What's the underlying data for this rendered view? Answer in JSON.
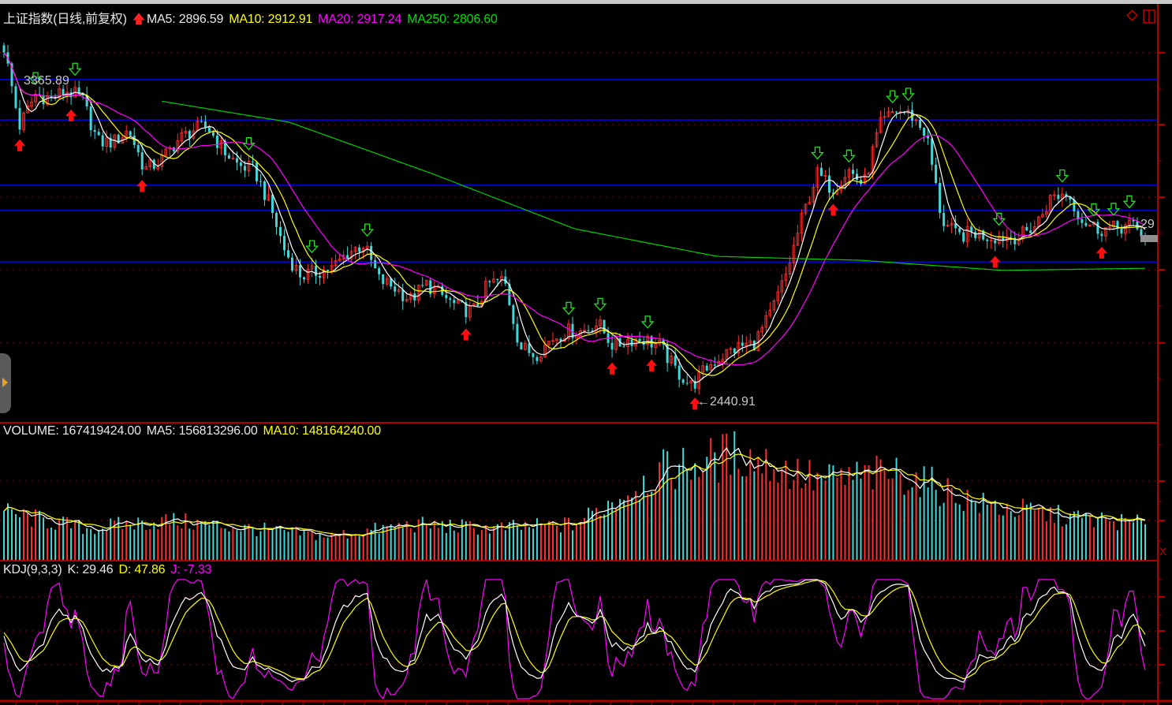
{
  "header": {
    "title": "上证指数(日线,前复权)",
    "ma5": "MA5: 2896.59",
    "ma10": "MA10: 2912.91",
    "ma20": "MA20: 2917.24",
    "ma250": "MA250: 2806.60"
  },
  "volume_header": {
    "volume": "VOLUME: 167419424.00",
    "ma5": "MA5: 156813296.00",
    "ma10": "MA10: 148164240.00"
  },
  "kdj_header": {
    "name": "KDJ(9,3,3)",
    "k": "K: 29.46",
    "d": "D: 47.86",
    "j": "J: -7.33"
  },
  "annotations": {
    "high_label": "3365.89",
    "low_label": "←2440.91",
    "right_price_tag": "29"
  },
  "colors": {
    "up": "#ff3030",
    "down": "#40d8d8",
    "ma5": "#ffffff",
    "ma10": "#ffff00",
    "ma20": "#ff00ff",
    "ma250": "#00d000",
    "level_line": "#0000ff",
    "grid": "#8b0000"
  },
  "chart_data": {
    "type": "candlestick",
    "title": "上证指数(日线,前复权)",
    "price_high": 3365.89,
    "price_low": 2440.91,
    "close_keypoints": [
      3456,
      3230,
      3321,
      3309,
      3332,
      3309,
      3185,
      3185,
      3219,
      3106,
      3129,
      3185,
      3219,
      3230,
      3163,
      3118,
      3106,
      3005,
      2869,
      2802,
      2813,
      2824,
      2869,
      2892,
      2791,
      2768,
      2734,
      2779,
      2746,
      2712,
      2700,
      2779,
      2791,
      2599,
      2576,
      2621,
      2644,
      2644,
      2667,
      2599,
      2621,
      2621,
      2599,
      2531,
      2486,
      2542,
      2576,
      2599,
      2610,
      2689,
      2802,
      2960,
      3095,
      3050,
      3106,
      3061,
      3230,
      3276,
      3264,
      3208,
      2960,
      2915,
      2926,
      2915,
      2915,
      2915,
      2948,
      3027,
      3039,
      2960,
      2937,
      2937,
      2948,
      2915
    ],
    "ma250_keypoints": [
      3309,
      3309,
      3242,
      3095,
      2937,
      2858,
      2847,
      2818,
      2824
    ],
    "volume_keypoints": [
      222000000,
      148000000,
      185000000,
      148000000,
      111000000,
      166000000,
      148000000,
      166000000,
      407000000,
      500000000,
      370000000,
      407000000,
      259000000,
      204000000,
      167000000
    ],
    "indicators": [
      "MA5",
      "MA10",
      "MA20",
      "MA250",
      "VOLUME",
      "KDJ(9,3,3)"
    ]
  }
}
